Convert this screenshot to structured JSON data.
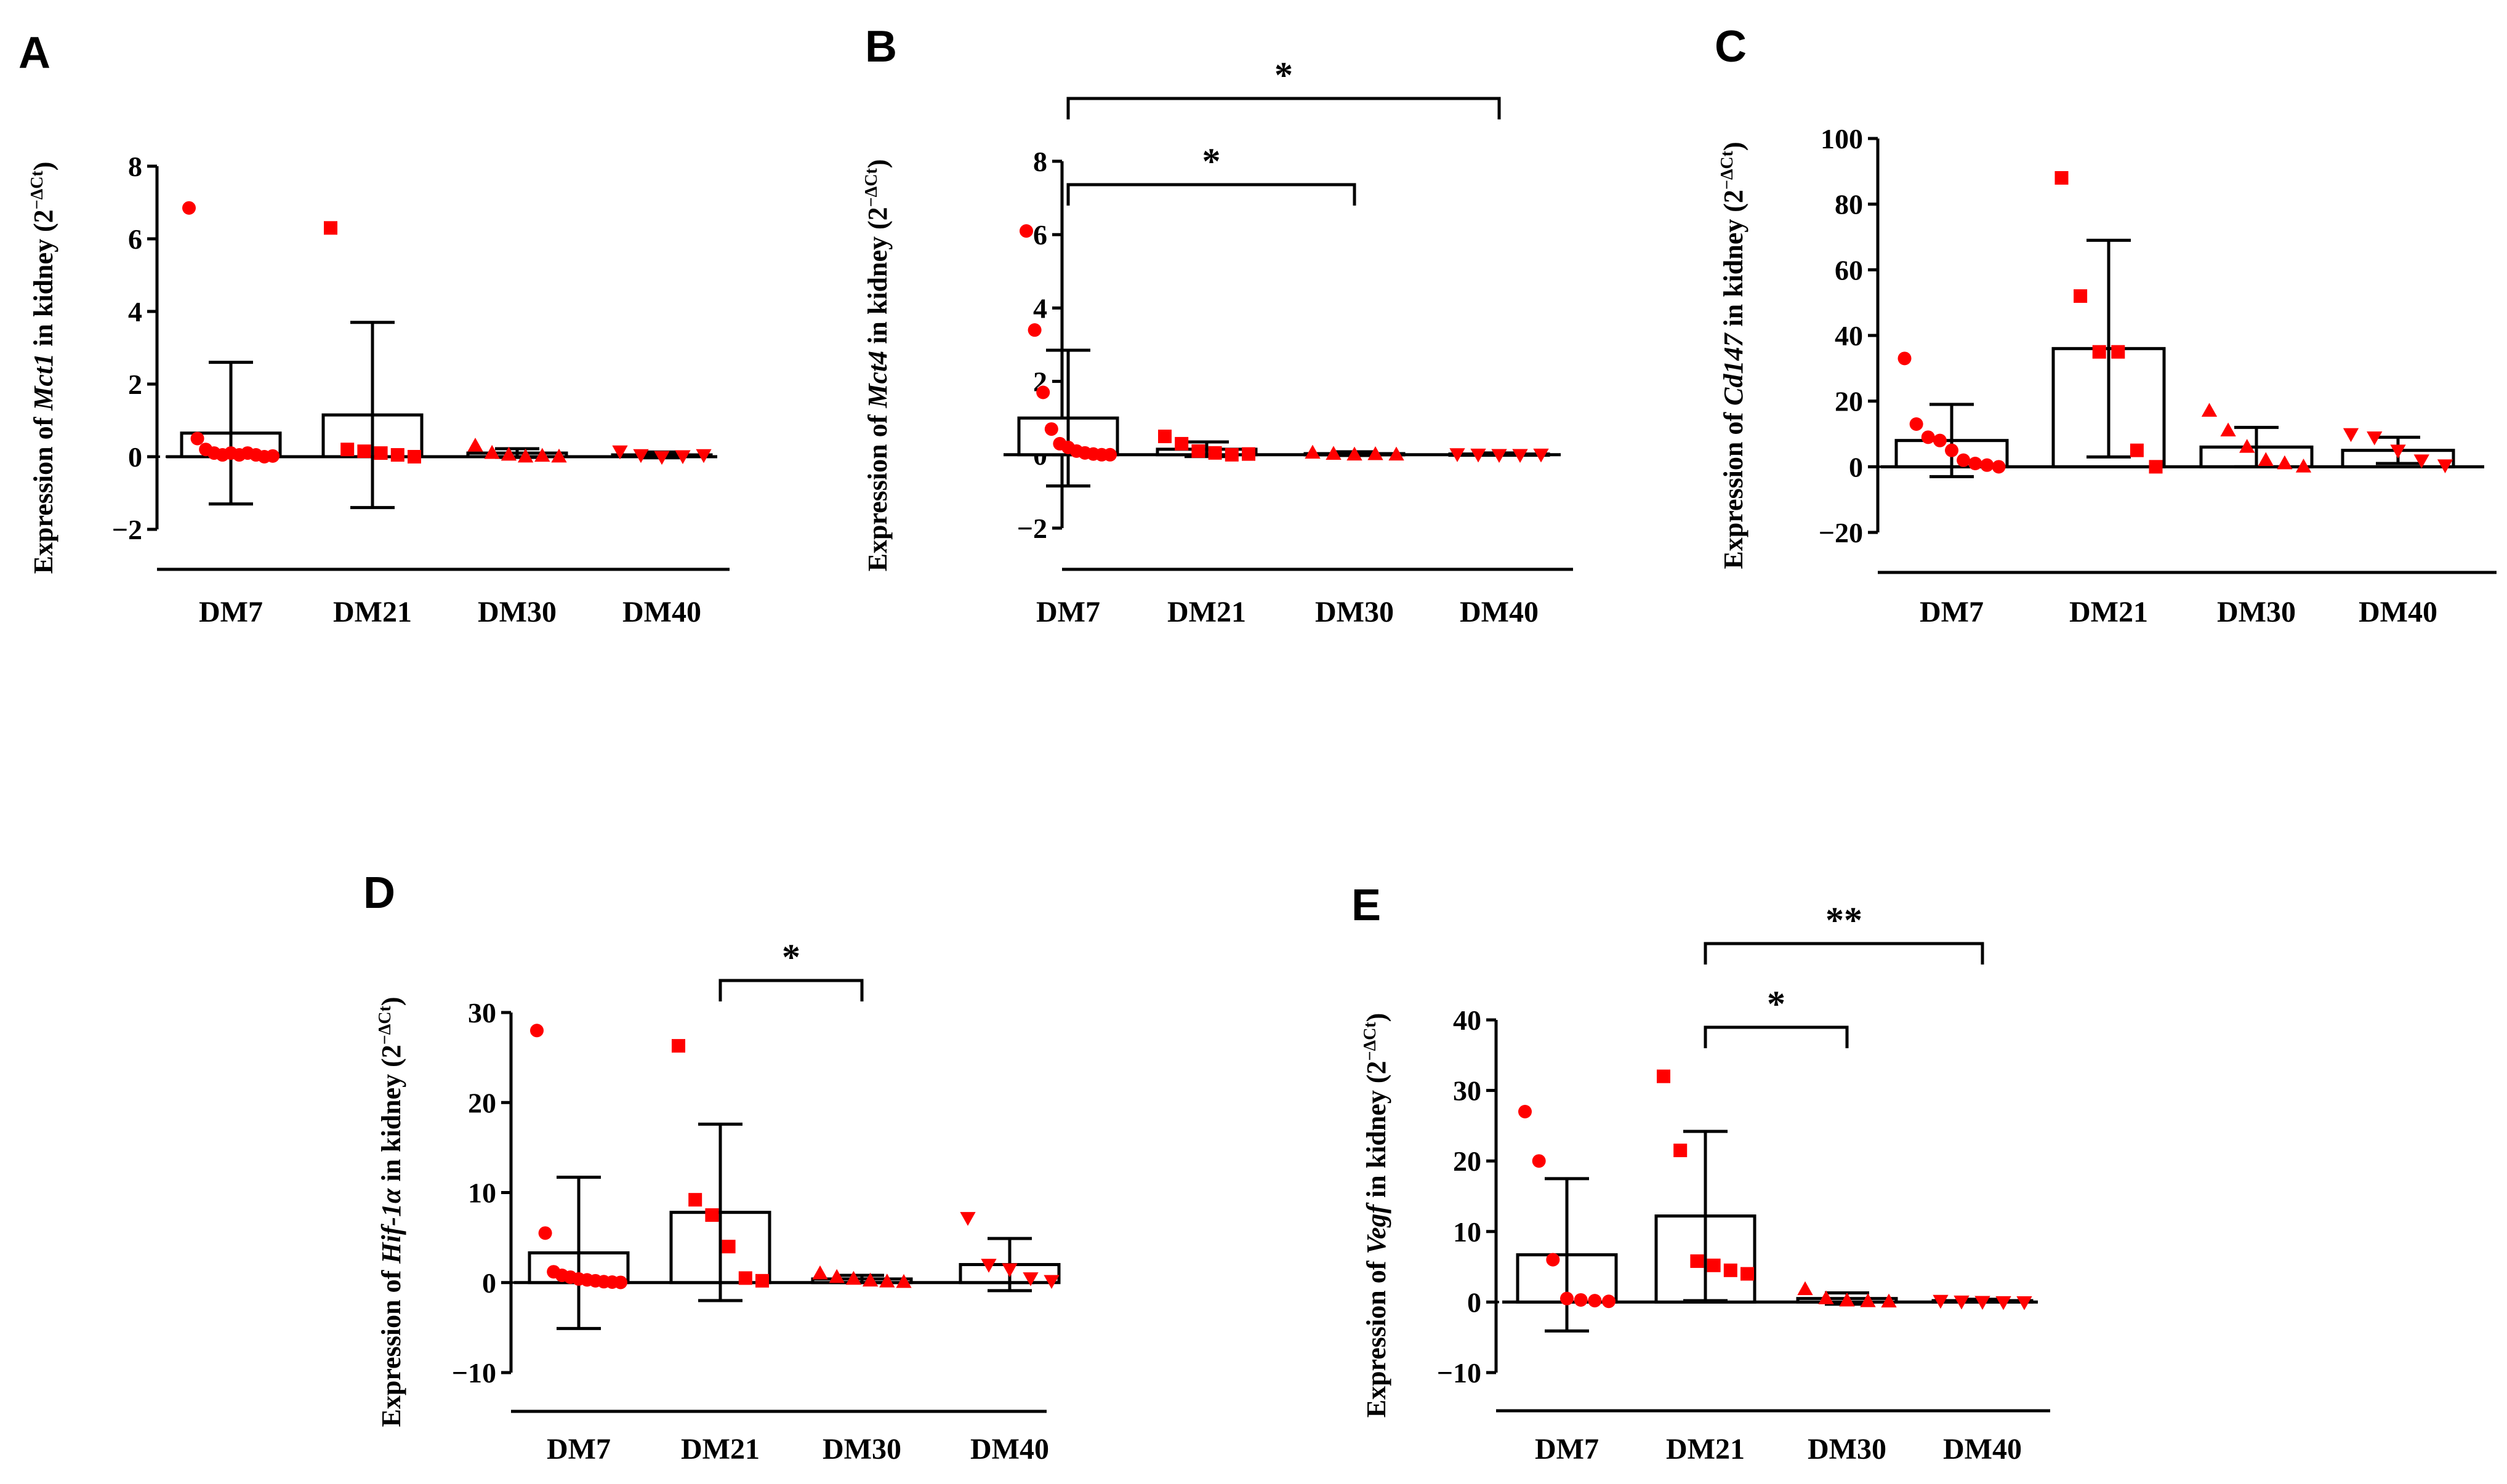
{
  "chart_data": [
    {
      "panel": "A",
      "type": "bar",
      "categories": [
        "DM7",
        "DM21",
        "DM30",
        "DM40"
      ],
      "ylabel_prefix": "Expression of ",
      "ylabel_gene": "Mct1",
      "ylabel_suffix": " in kidney (2",
      "ylabel_sup": "−ΔCt",
      "ylabel_close": ")",
      "ylim": [
        -2,
        8
      ],
      "yticks": [
        -2,
        0,
        2,
        4,
        6,
        8
      ],
      "ytick_labels": [
        "−2",
        "0",
        "2",
        "4",
        "6",
        "8"
      ],
      "means": [
        0.65,
        1.15,
        0.1,
        0.05
      ],
      "errors": [
        1.95,
        2.55,
        0.12,
        0.08
      ],
      "marker": [
        "circle",
        "square",
        "triangle",
        "triangle-down"
      ],
      "points": [
        [
          6.85,
          0.5,
          0.2,
          0.1,
          0.05,
          0.1,
          0.05,
          0.1,
          0.05,
          0.0,
          0.02
        ],
        [
          6.3,
          0.2,
          0.15,
          0.1,
          0.05,
          0.0
        ],
        [
          0.3,
          0.1,
          0.05,
          0.0,
          0.02,
          0.0
        ],
        [
          0.15,
          0.05,
          0.0,
          0.02,
          0.05
        ]
      ],
      "significance": []
    },
    {
      "panel": "B",
      "type": "bar",
      "categories": [
        "DM7",
        "DM21",
        "DM30",
        "DM40"
      ],
      "ylabel_prefix": "Expression of ",
      "ylabel_gene": "Mct4",
      "ylabel_suffix": " in kidney (2",
      "ylabel_sup": "−ΔCt",
      "ylabel_close": ")",
      "ylim": [
        -2,
        8
      ],
      "yticks": [
        -2,
        0,
        2,
        4,
        6,
        8
      ],
      "ytick_labels": [
        "−2",
        "0",
        "2",
        "4",
        "6",
        "8"
      ],
      "means": [
        1.0,
        0.15,
        0.03,
        0.02
      ],
      "errors": [
        1.85,
        0.2,
        0.05,
        0.03
      ],
      "marker": [
        "circle",
        "square",
        "triangle",
        "triangle-down"
      ],
      "points": [
        [
          6.1,
          3.4,
          1.7,
          0.7,
          0.3,
          0.2,
          0.1,
          0.05,
          0.02,
          0.0,
          0.0
        ],
        [
          0.5,
          0.3,
          0.1,
          0.05,
          0.0,
          0.02
        ],
        [
          0.05,
          0.02,
          0.0,
          0.01,
          0.0
        ],
        [
          0.02,
          0.01,
          0.0,
          0.0,
          0.01
        ]
      ],
      "significance": [
        {
          "from": 0,
          "to": 2,
          "label": "*"
        },
        {
          "from": 0,
          "to": 3,
          "label": "*"
        }
      ]
    },
    {
      "panel": "C",
      "type": "bar",
      "categories": [
        "DM7",
        "DM21",
        "DM30",
        "DM40"
      ],
      "ylabel_prefix": "Expression of ",
      "ylabel_gene": "Cd147",
      "ylabel_suffix": " in kidney (2",
      "ylabel_sup": "−ΔCt",
      "ylabel_close": ")",
      "ylim": [
        -20,
        100
      ],
      "yticks": [
        -20,
        0,
        20,
        40,
        60,
        80,
        100
      ],
      "ytick_labels": [
        "−20",
        "0",
        "20",
        "40",
        "60",
        "80",
        "100"
      ],
      "means": [
        8,
        36,
        6,
        5
      ],
      "errors": [
        11,
        33,
        6,
        4
      ],
      "marker": [
        "circle",
        "square",
        "triangle",
        "triangle-down"
      ],
      "points": [
        [
          33,
          13,
          9,
          8,
          5,
          2,
          1,
          0.5,
          0
        ],
        [
          88,
          52,
          35,
          35,
          5,
          0
        ],
        [
          17,
          11,
          6,
          2,
          1,
          0
        ],
        [
          10,
          9,
          5,
          2,
          0.5
        ]
      ],
      "significance": []
    },
    {
      "panel": "D",
      "type": "bar",
      "categories": [
        "DM7",
        "DM21",
        "DM30",
        "DM40"
      ],
      "ylabel_prefix": "Expression of ",
      "ylabel_gene": "Hif-1α",
      "ylabel_suffix": " in kidney (2",
      "ylabel_sup": "−ΔCt",
      "ylabel_close": ")",
      "ylim": [
        -10,
        30
      ],
      "yticks": [
        -10,
        0,
        10,
        20,
        30
      ],
      "ytick_labels": [
        "−10",
        "0",
        "10",
        "20",
        "30"
      ],
      "means": [
        3.3,
        7.8,
        0.4,
        2.0
      ],
      "errors": [
        8.4,
        9.8,
        0.4,
        2.9
      ],
      "marker": [
        "circle",
        "square",
        "triangle",
        "triangle-down"
      ],
      "points": [
        [
          28,
          5.5,
          1.2,
          0.8,
          0.6,
          0.4,
          0.3,
          0.2,
          0.1,
          0.05,
          0.02
        ],
        [
          26.3,
          9.2,
          7.5,
          4,
          0.5,
          0.2
        ],
        [
          1.0,
          0.6,
          0.4,
          0.2,
          0.1,
          0.05
        ],
        [
          7.2,
          2.0,
          1.5,
          0.5,
          0.2
        ]
      ],
      "significance": [
        {
          "from": 1,
          "to": 2,
          "label": "*"
        }
      ]
    },
    {
      "panel": "E",
      "type": "bar",
      "categories": [
        "DM7",
        "DM21",
        "DM30",
        "DM40"
      ],
      "ylabel_prefix": "Expression of ",
      "ylabel_gene": "Vegf",
      "ylabel_suffix": " in kidney (2",
      "ylabel_sup": "−ΔCt",
      "ylabel_close": ")",
      "ylim": [
        -10,
        40
      ],
      "yticks": [
        -10,
        0,
        10,
        20,
        30,
        40
      ],
      "ytick_labels": [
        "−10",
        "0",
        "10",
        "20",
        "30",
        "40"
      ],
      "means": [
        6.7,
        12.2,
        0.5,
        0.2
      ],
      "errors": [
        10.8,
        12.0,
        0.8,
        0.2
      ],
      "marker": [
        "circle",
        "square",
        "triangle",
        "triangle-down"
      ],
      "points": [
        [
          27,
          20,
          6,
          0.5,
          0.3,
          0.2,
          0.1
        ],
        [
          32,
          21.5,
          5.8,
          5.2,
          4.5,
          4
        ],
        [
          1.8,
          0.5,
          0.2,
          0.1,
          0.05
        ],
        [
          0.2,
          0.1,
          0.05,
          0.02,
          0.0
        ]
      ],
      "significance": [
        {
          "from": 1,
          "to": 2,
          "label": "*"
        },
        {
          "from": 1,
          "to": 3,
          "label": "**"
        }
      ]
    }
  ],
  "colors": {
    "point": "#ff0000",
    "line": "#000000",
    "bar_fill": "#ffffff"
  }
}
